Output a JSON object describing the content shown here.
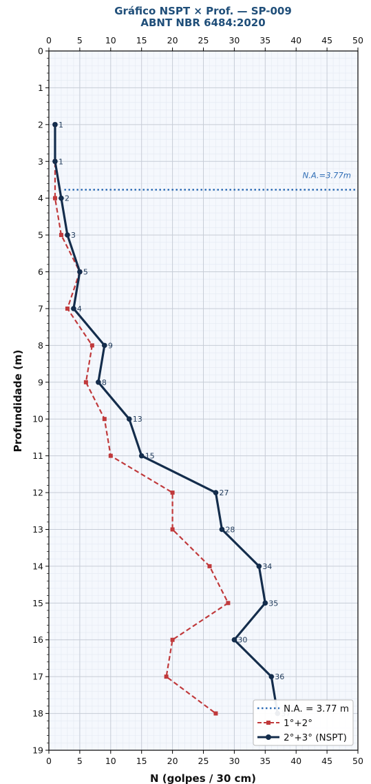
{
  "chart_data": {
    "type": "line",
    "title": "Gráfico NSPT × Prof. — SP-009",
    "subtitle": "ABNT NBR 6484:2020",
    "xlabel": "N (golpes / 30 cm)",
    "ylabel": "Profundidade (m)",
    "xlim": [
      0,
      50
    ],
    "ylim": [
      19,
      0
    ],
    "x_ticks": [
      "0",
      "5",
      "10",
      "15",
      "20",
      "25",
      "30",
      "35",
      "40",
      "45",
      "50"
    ],
    "y_ticks": [
      "0",
      "1",
      "2",
      "3",
      "4",
      "5",
      "6",
      "7",
      "8",
      "9",
      "10",
      "11",
      "12",
      "13",
      "14",
      "15",
      "16",
      "17",
      "18",
      "19"
    ],
    "grid": true,
    "legend_position": "bottom-right",
    "water_level": {
      "depth": 3.77,
      "label": "N.A.=3.77m",
      "color": "#2f6db5"
    },
    "series": [
      {
        "name": "1°+2°",
        "style": "dashed",
        "color": "#c0393b",
        "points": [
          {
            "depth": 2,
            "n": 1
          },
          {
            "depth": 3,
            "n": 1
          },
          {
            "depth": 4,
            "n": 1
          },
          {
            "depth": 5,
            "n": 2
          },
          {
            "depth": 6,
            "n": 5
          },
          {
            "depth": 7,
            "n": 3
          },
          {
            "depth": 8,
            "n": 7
          },
          {
            "depth": 9,
            "n": 6
          },
          {
            "depth": 10,
            "n": 9
          },
          {
            "depth": 11,
            "n": 10
          },
          {
            "depth": 12,
            "n": 20
          },
          {
            "depth": 13,
            "n": 20
          },
          {
            "depth": 14,
            "n": 26
          },
          {
            "depth": 15,
            "n": 29
          },
          {
            "depth": 16,
            "n": 20
          },
          {
            "depth": 17,
            "n": 19
          },
          {
            "depth": 18,
            "n": 27
          }
        ]
      },
      {
        "name": "2°+3° (NSPT)",
        "style": "solid",
        "color": "#142d4c",
        "points": [
          {
            "depth": 2,
            "n": 1,
            "label": "1"
          },
          {
            "depth": 3,
            "n": 1,
            "label": "1"
          },
          {
            "depth": 4,
            "n": 2,
            "label": "2"
          },
          {
            "depth": 5,
            "n": 3,
            "label": "3"
          },
          {
            "depth": 6,
            "n": 5,
            "label": "5"
          },
          {
            "depth": 7,
            "n": 4,
            "label": "4"
          },
          {
            "depth": 8,
            "n": 9,
            "label": "9"
          },
          {
            "depth": 9,
            "n": 8,
            "label": "8"
          },
          {
            "depth": 10,
            "n": 13,
            "label": "13"
          },
          {
            "depth": 11,
            "n": 15,
            "label": "15"
          },
          {
            "depth": 12,
            "n": 27,
            "label": "27"
          },
          {
            "depth": 13,
            "n": 28,
            "label": "28"
          },
          {
            "depth": 14,
            "n": 34,
            "label": "34"
          },
          {
            "depth": 15,
            "n": 35,
            "label": "35"
          },
          {
            "depth": 16,
            "n": 30,
            "label": "30"
          },
          {
            "depth": 17,
            "n": 36,
            "label": "36"
          },
          {
            "depth": 18,
            "n": 37,
            "label": "37"
          }
        ]
      }
    ],
    "legend": {
      "entries": [
        {
          "label": "N.A. = 3.77 m"
        },
        {
          "label": "1°+2°"
        },
        {
          "label": "2°+3° (NSPT)"
        }
      ]
    }
  }
}
